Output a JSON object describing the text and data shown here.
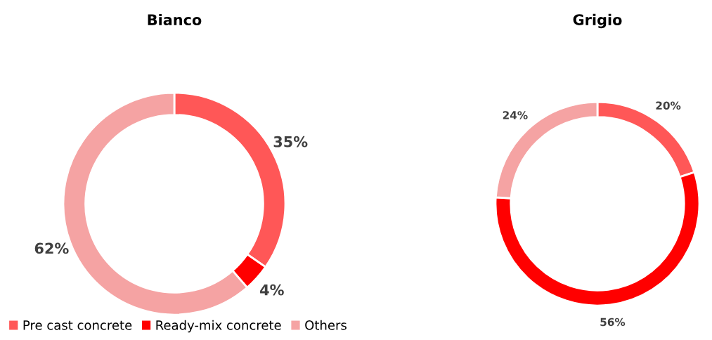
{
  "chart_data": [
    {
      "type": "donut",
      "title": "Bianco",
      "categories": [
        "Pre cast concrete",
        "Ready-mix concrete",
        "Others"
      ],
      "values": [
        35,
        4,
        62
      ],
      "value_labels": [
        "35%",
        "4%",
        "62%"
      ],
      "colors": [
        "#ff5757",
        "#ff0000",
        "#f5a3a3"
      ],
      "legend": "bottom"
    },
    {
      "type": "donut",
      "title": "Grigio",
      "categories": [
        null,
        null,
        null
      ],
      "values": [
        20,
        56,
        24
      ],
      "value_labels": [
        "20%",
        "56%",
        "24%"
      ],
      "colors": [
        "#ff5757",
        "#ff0000",
        "#f5a3a3"
      ]
    }
  ]
}
